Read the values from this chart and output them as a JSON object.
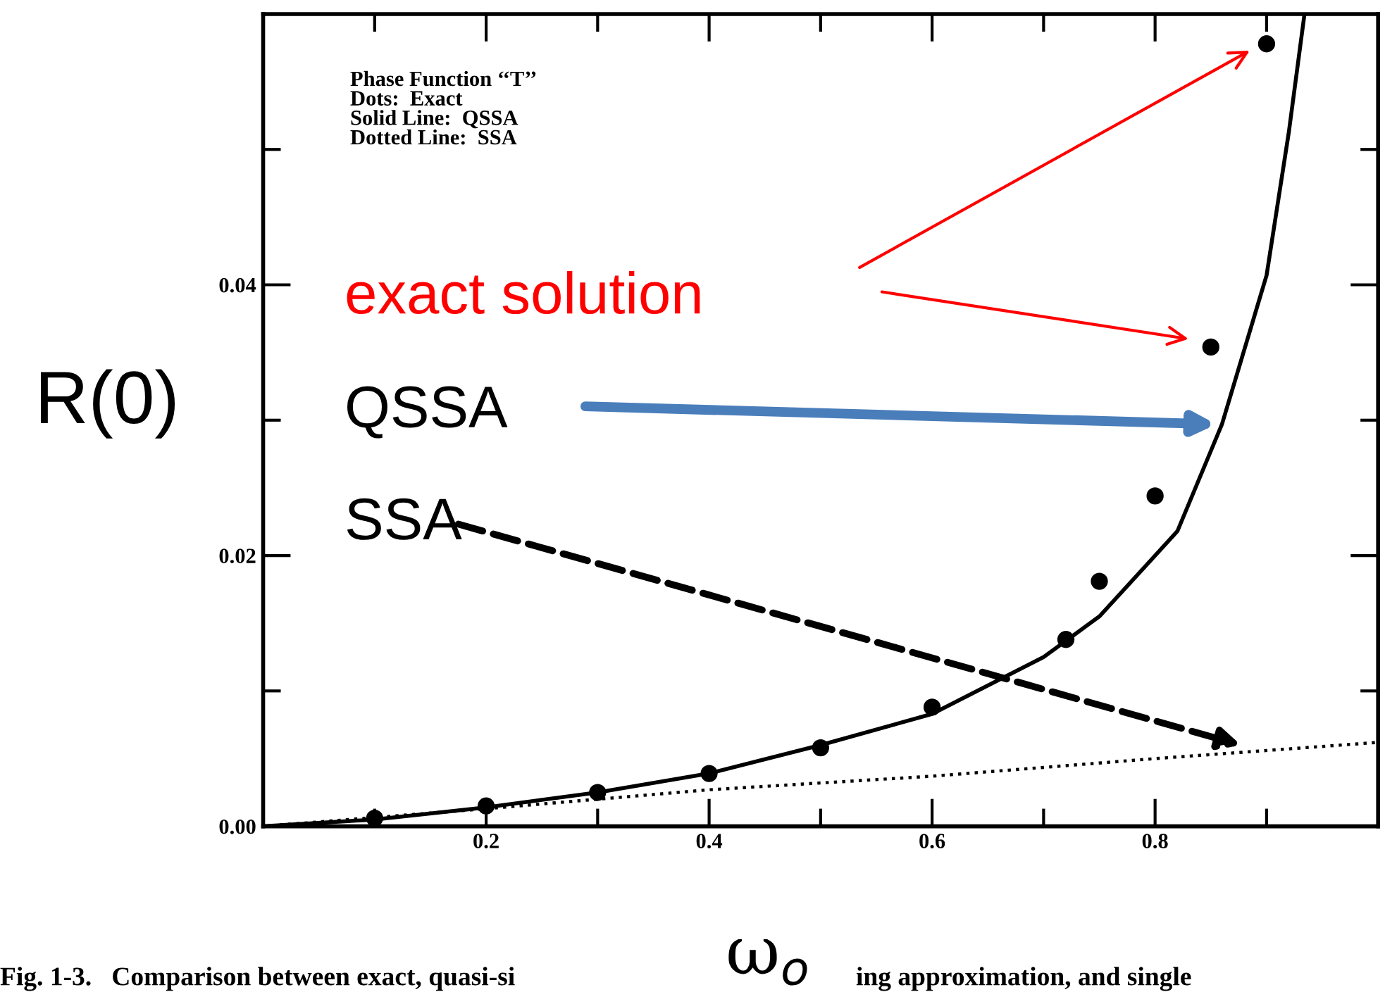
{
  "chart_data": {
    "type": "line",
    "xlabel": "ω$_{o}$",
    "ylabel": "R(0)",
    "xlim": [
      0,
      1.0
    ],
    "ylim": [
      0,
      0.06
    ],
    "xticks": [
      {
        "value": 0.1,
        "label": null
      },
      0.2,
      {
        "value": 0.3,
        "label": null
      },
      0.4,
      {
        "value": 0.5,
        "label": null
      },
      0.6,
      {
        "value": 0.7,
        "label": null
      },
      0.8,
      {
        "value": 0.9,
        "label": null
      }
    ],
    "yticks": [
      {
        "value": 0,
        "label": "0.00"
      },
      {
        "value": 0.01,
        "label": null
      },
      {
        "value": 0.02,
        "label": "0.02"
      },
      {
        "value": 0.03,
        "label": null
      },
      {
        "value": 0.04,
        "label": "0.04"
      },
      {
        "value": 0.05,
        "label": null
      }
    ],
    "grid": false,
    "legend": false,
    "series": [
      {
        "type": "scatter",
        "color": "#000000",
        "marker": "circle",
        "x": [
          0.1,
          0.2,
          0.3,
          0.4,
          0.5,
          0.6,
          0.72,
          0.75,
          0.8,
          0.85,
          0.9
        ],
        "values": [
          0.0006,
          0.0015,
          0.0025,
          0.0039,
          0.0058,
          0.0088,
          0.0138,
          0.0181,
          0.0244,
          0.0354,
          0.0578
        ]
      },
      {
        "color": "#000000",
        "line_style": "solid",
        "x": [
          0,
          0.1,
          0.2,
          0.3,
          0.4,
          0.5,
          0.6,
          0.7,
          0.75,
          0.8,
          0.82,
          0.86,
          0.9,
          0.92,
          0.934
        ],
        "values": [
          0,
          0.0005,
          0.0014,
          0.0025,
          0.0039,
          0.006,
          0.0083,
          0.0125,
          0.0155,
          0.02,
          0.0218,
          0.0297,
          0.0407,
          0.0513,
          0.06
        ]
      },
      {
        "color": "#000000",
        "line_style": "dotted",
        "x": [
          0,
          0.2,
          0.4,
          0.6,
          0.8,
          1.0
        ],
        "values": [
          0,
          0.0013,
          0.0027,
          0.0037,
          0.005,
          0.0062
        ]
      }
    ],
    "annotations": [
      "Phase Function ‘‘T’’\nDots:  Exact\nSolid Line:  QSSA\nDotted Line:  SSA",
      "exact solution",
      "QSSA",
      "SSA",
      "Fig. 1-3.   Comparison between exact, quasi-si",
      "ing approximation, and single"
    ]
  }
}
